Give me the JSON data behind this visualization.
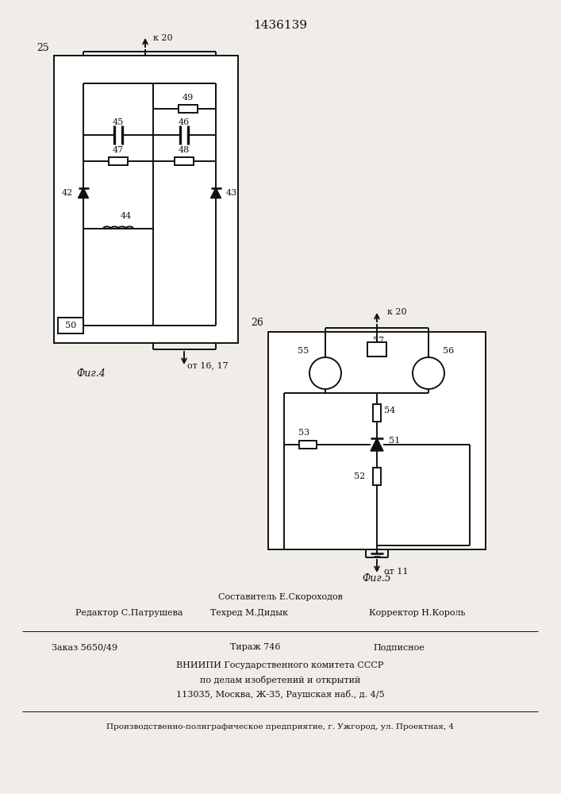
{
  "title": "1436139",
  "fig4_label": "25",
  "fig4_caption": "Фиг.4",
  "fig4_conn_top": "к 20",
  "fig4_conn_bot": "от 16, 17",
  "fig5_label": "26",
  "fig5_caption": "Фиг.5",
  "fig5_conn_top": "к 20",
  "fig5_conn_bot": "от 11",
  "footer1": "Составитель Е.Скороходов",
  "footer2_left": "Редактор С.Патрушева",
  "footer2_mid": "Техред М.Дидык",
  "footer2_right": "Корректор Н.Король",
  "footer3_left": "Заказ 5650/49",
  "footer3_mid": "Тираж 746",
  "footer3_right": "Подписное",
  "footer4": "ВНИИПИ Государственного комитета СССР",
  "footer5": "по делам изобретений и открытий",
  "footer6": "113035, Москва, Ж-35, Раушская наб., д. 4/5",
  "footer7": "Производственно-полиграфическое предприятие, г. Ужгород, ул. Проектная, 4",
  "bg_color": "#f0ede8",
  "line_color": "#111111"
}
